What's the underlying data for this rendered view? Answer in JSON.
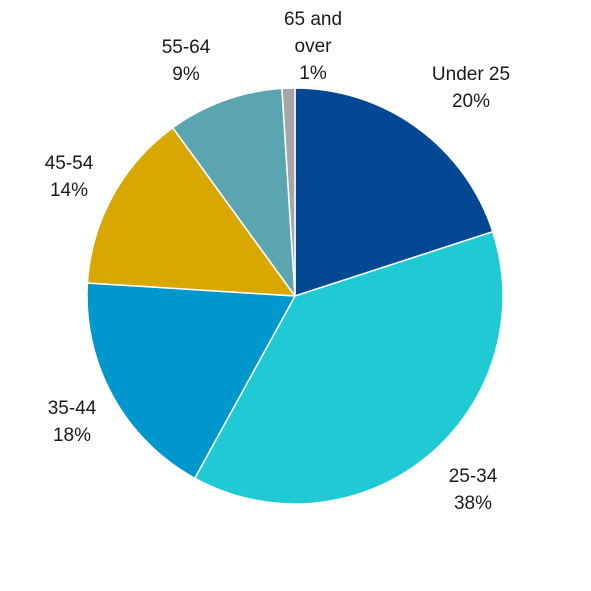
{
  "chart_data": {
    "type": "pie",
    "title": "",
    "start_angle_deg": 0,
    "direction": "clockwise",
    "legend": "none",
    "slices": [
      {
        "name": "Under 25",
        "label": [
          "Under 25",
          "20%"
        ],
        "value": 20,
        "color": "#044793"
      },
      {
        "name": "25-34",
        "label": [
          "25-34",
          "38%"
        ],
        "value": 38,
        "color": "#1fcad5"
      },
      {
        "name": "35-44",
        "label": [
          "35-44",
          "18%"
        ],
        "value": 18,
        "color": "#0097cc"
      },
      {
        "name": "45-54",
        "label": [
          "45-54",
          "14%"
        ],
        "value": 14,
        "color": "#d9a800"
      },
      {
        "name": "55-64",
        "label": [
          "55-64",
          "9%"
        ],
        "value": 9,
        "color": "#5ba5b0"
      },
      {
        "name": "65 and over",
        "label": [
          "65 and",
          "over",
          "1%"
        ],
        "value": 1,
        "color": "#a6a6a6"
      }
    ]
  }
}
